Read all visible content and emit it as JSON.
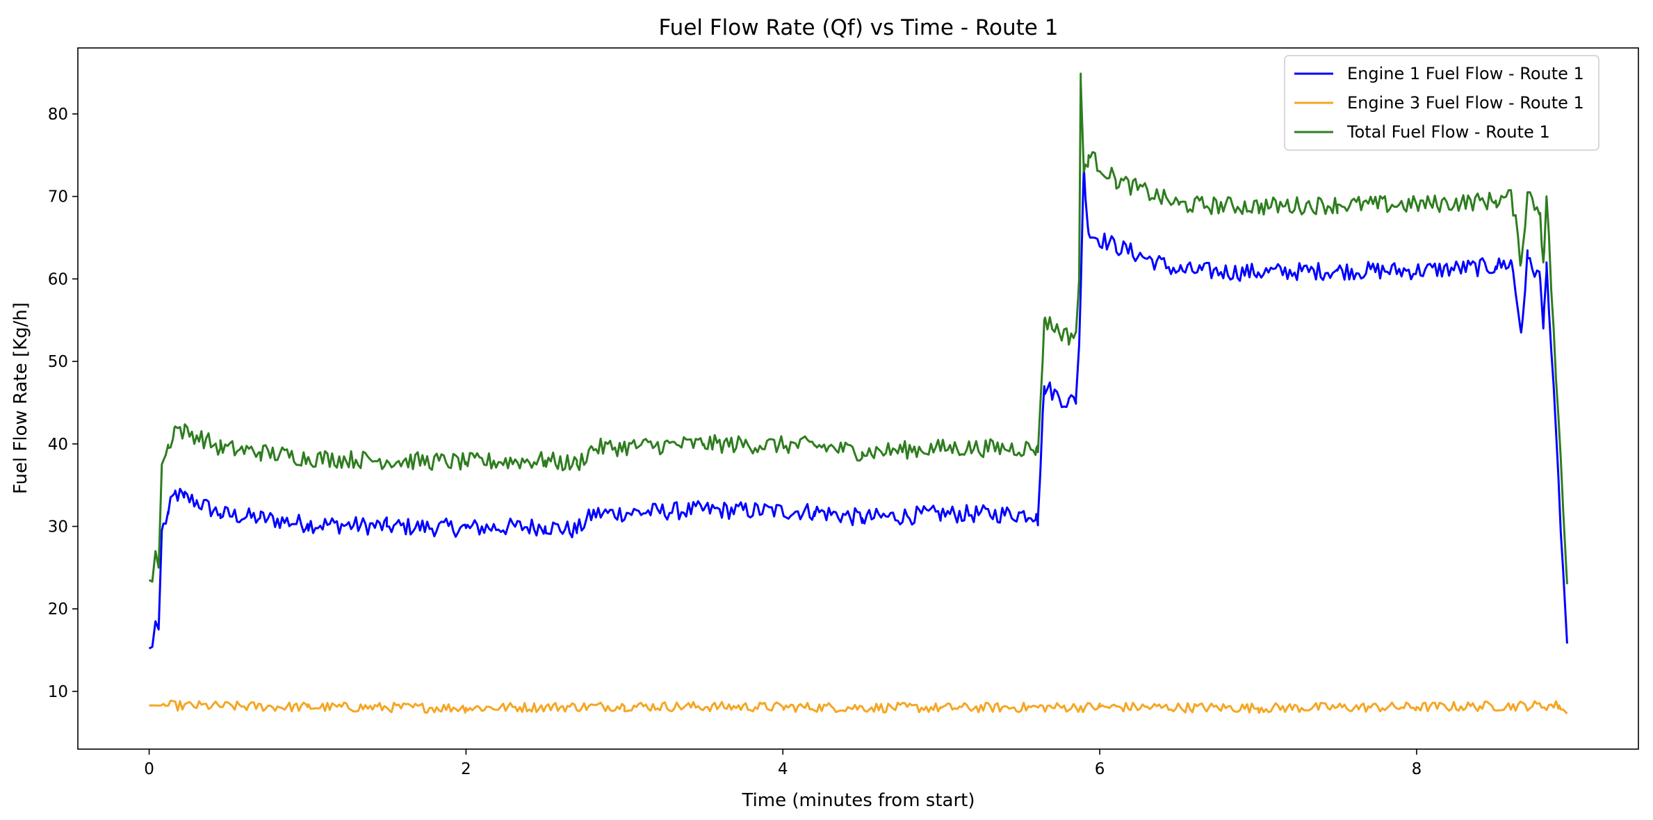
{
  "chart_data": {
    "type": "line",
    "title": "Fuel Flow Rate (Qf) vs Time - Route 1",
    "xlabel": "Time (minutes from start)",
    "ylabel": "Fuel Flow Rate [Kg/h]",
    "xlim": [
      -0.45,
      9.4
    ],
    "ylim": [
      3,
      88
    ],
    "xticks": [
      0,
      2,
      4,
      6,
      8
    ],
    "yticks": [
      10,
      20,
      30,
      40,
      50,
      60,
      70,
      80
    ],
    "grid": false,
    "legend_position": "top-right",
    "sample_interval_min": 0.015,
    "series": [
      {
        "name": "Engine 1 Fuel Flow - Route 1",
        "color": "#0000ff",
        "profile": [
          [
            0,
            15.2
          ],
          [
            0.02,
            15.4
          ],
          [
            0.04,
            18.5
          ],
          [
            0.06,
            17.5
          ],
          [
            0.08,
            29.5
          ],
          [
            0.12,
            31.5
          ],
          [
            0.16,
            34
          ],
          [
            0.22,
            33.5
          ],
          [
            0.3,
            33
          ],
          [
            0.45,
            31.5
          ],
          [
            0.7,
            31
          ],
          [
            1.0,
            30.3
          ],
          [
            1.5,
            30
          ],
          [
            2.0,
            29.8
          ],
          [
            2.5,
            30
          ],
          [
            2.7,
            29.5
          ],
          [
            2.8,
            31.5
          ],
          [
            3.5,
            32
          ],
          [
            4.2,
            31.8
          ],
          [
            4.5,
            31
          ],
          [
            5.0,
            31.5
          ],
          [
            5.6,
            31.5
          ],
          [
            5.61,
            31
          ],
          [
            5.65,
            47
          ],
          [
            5.8,
            45
          ],
          [
            5.85,
            45.5
          ],
          [
            5.87,
            52
          ],
          [
            5.9,
            73.5
          ],
          [
            5.93,
            65.5
          ],
          [
            6.1,
            64
          ],
          [
            6.5,
            61
          ],
          [
            7.0,
            60.8
          ],
          [
            7.5,
            61
          ],
          [
            8.0,
            61
          ],
          [
            8.5,
            61.5
          ],
          [
            8.6,
            62
          ],
          [
            8.66,
            53.5
          ],
          [
            8.7,
            62.5
          ],
          [
            8.78,
            60
          ],
          [
            8.8,
            54
          ],
          [
            8.82,
            62
          ],
          [
            8.95,
            15.8
          ]
        ],
        "noise": 1.1,
        "values": []
      },
      {
        "name": "Engine 3 Fuel Flow - Route 1",
        "color": "#f5a623",
        "profile": [
          [
            0,
            8.3
          ],
          [
            1.0,
            8.1
          ],
          [
            2.0,
            8.0
          ],
          [
            3.0,
            8.2
          ],
          [
            4.0,
            8.1
          ],
          [
            5.0,
            8.0
          ],
          [
            6.0,
            8.1
          ],
          [
            7.0,
            8.0
          ],
          [
            8.0,
            8.1
          ],
          [
            8.9,
            8.3
          ],
          [
            8.95,
            7.3
          ]
        ],
        "noise": 0.6,
        "values": []
      },
      {
        "name": "Total Fuel Flow - Route 1",
        "color": "#2e7d1f",
        "profile": [
          [
            0,
            23.5
          ],
          [
            0.02,
            23.3
          ],
          [
            0.04,
            27
          ],
          [
            0.06,
            25
          ],
          [
            0.08,
            37.5
          ],
          [
            0.12,
            39.5
          ],
          [
            0.16,
            42
          ],
          [
            0.22,
            41.5
          ],
          [
            0.3,
            41
          ],
          [
            0.45,
            39.5
          ],
          [
            0.7,
            39
          ],
          [
            1.0,
            38.3
          ],
          [
            1.5,
            38
          ],
          [
            2.0,
            37.8
          ],
          [
            2.5,
            38
          ],
          [
            2.7,
            37.5
          ],
          [
            2.8,
            39.5
          ],
          [
            3.5,
            40
          ],
          [
            4.2,
            39.8
          ],
          [
            4.5,
            39
          ],
          [
            5.0,
            39.5
          ],
          [
            5.6,
            39.5
          ],
          [
            5.61,
            39
          ],
          [
            5.65,
            55
          ],
          [
            5.8,
            53
          ],
          [
            5.85,
            53.5
          ],
          [
            5.87,
            60
          ],
          [
            5.88,
            84
          ],
          [
            5.9,
            73
          ],
          [
            5.93,
            75
          ],
          [
            6.1,
            72
          ],
          [
            6.5,
            69
          ],
          [
            7.0,
            68.8
          ],
          [
            7.5,
            69
          ],
          [
            8.0,
            69
          ],
          [
            8.5,
            69.5
          ],
          [
            8.6,
            70
          ],
          [
            8.66,
            62
          ],
          [
            8.7,
            70.5
          ],
          [
            8.78,
            68
          ],
          [
            8.8,
            62
          ],
          [
            8.82,
            70
          ],
          [
            8.95,
            23
          ]
        ],
        "noise": 1.1,
        "values": []
      }
    ]
  }
}
